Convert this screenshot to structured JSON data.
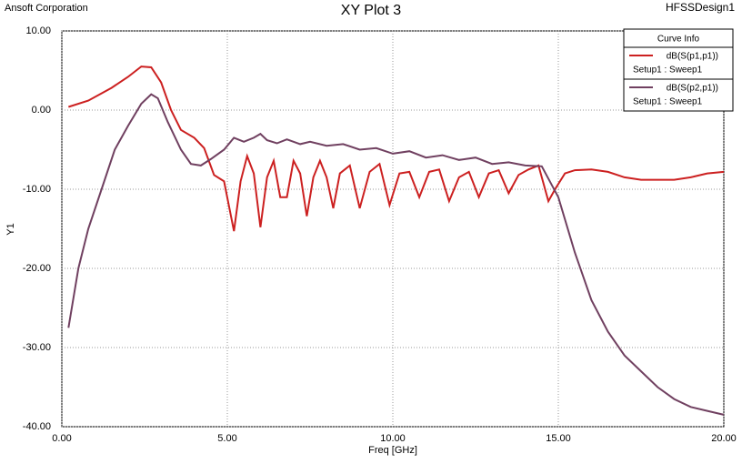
{
  "chart_data": {
    "type": "line",
    "title": "XY Plot 3",
    "company": "Ansoft Corporation",
    "design": "HFSSDesign1",
    "x_label": "Freq [GHz]",
    "y_label": "Y1",
    "legend_title": "Curve Info",
    "legend": "upper right",
    "grid": true,
    "xlim": [
      0,
      20
    ],
    "ylim": [
      -40,
      10
    ],
    "xticks": [
      {
        "value": 0,
        "label": "0.00"
      },
      {
        "value": 5,
        "label": "5.00"
      },
      {
        "value": 10,
        "label": "10.00"
      },
      {
        "value": 15,
        "label": "15.00"
      },
      {
        "value": 20,
        "label": "20.00"
      }
    ],
    "yticks": [
      {
        "value": 10,
        "label": "10.00"
      },
      {
        "value": 0,
        "label": "0.00"
      },
      {
        "value": -10,
        "label": "-10.00"
      },
      {
        "value": -20,
        "label": "-20.00"
      },
      {
        "value": -30,
        "label": "-30.00"
      },
      {
        "value": -40,
        "label": "-40.00"
      }
    ],
    "series": [
      {
        "name": "dB(S(p1,p1))",
        "setup": "Setup1 : Sweep1",
        "color": "#cc2020",
        "x": [
          0.2,
          0.8,
          1.5,
          2.0,
          2.4,
          2.7,
          3.0,
          3.3,
          3.6,
          4.0,
          4.3,
          4.6,
          4.9,
          5.2,
          5.4,
          5.6,
          5.8,
          6.0,
          6.2,
          6.4,
          6.6,
          6.8,
          7.0,
          7.2,
          7.4,
          7.6,
          7.8,
          8.0,
          8.2,
          8.4,
          8.7,
          9.0,
          9.3,
          9.6,
          9.9,
          10.2,
          10.5,
          10.8,
          11.1,
          11.4,
          11.7,
          12.0,
          12.3,
          12.6,
          12.9,
          13.2,
          13.5,
          13.8,
          14.1,
          14.4,
          14.7,
          14.9,
          15.2,
          15.5,
          16.0,
          16.5,
          17.0,
          17.5,
          18.0,
          18.5,
          19.0,
          19.5,
          20.0
        ],
        "values": [
          0.4,
          1.2,
          2.8,
          4.2,
          5.5,
          5.4,
          3.5,
          0,
          -2.5,
          -3.5,
          -4.8,
          -8.2,
          -9.0,
          -15.3,
          -9.0,
          -5.8,
          -8.0,
          -14.8,
          -8.5,
          -6.4,
          -11.0,
          -11.0,
          -6.4,
          -8.0,
          -13.4,
          -8.5,
          -6.4,
          -8.5,
          -12.4,
          -8.0,
          -7.0,
          -12.4,
          -7.8,
          -6.8,
          -12.0,
          -8.0,
          -7.8,
          -11.0,
          -7.8,
          -7.5,
          -11.5,
          -8.5,
          -7.8,
          -11.0,
          -8.0,
          -7.6,
          -10.5,
          -8.2,
          -7.5,
          -7.0,
          -11.5,
          -10.0,
          -8.0,
          -7.6,
          -7.5,
          -7.8,
          -8.5,
          -8.8,
          -8.8,
          -8.8,
          -8.5,
          -8.0,
          -7.8
        ]
      },
      {
        "name": "dB(S(p2,p1))",
        "setup": "Setup1 : Sweep1",
        "color": "#704060",
        "x": [
          0.2,
          0.5,
          0.8,
          1.2,
          1.6,
          2.0,
          2.4,
          2.7,
          2.9,
          3.2,
          3.6,
          3.9,
          4.2,
          4.5,
          4.9,
          5.2,
          5.5,
          5.8,
          6.0,
          6.2,
          6.5,
          6.8,
          7.2,
          7.5,
          8.0,
          8.5,
          9.0,
          9.5,
          10.0,
          10.5,
          11.0,
          11.5,
          12.0,
          12.5,
          13.0,
          13.5,
          14.0,
          14.5,
          15.0,
          15.5,
          16.0,
          16.5,
          17.0,
          17.5,
          18.0,
          18.5,
          19.0,
          19.5,
          20.0
        ],
        "values": [
          -27.5,
          -20,
          -15,
          -10,
          -5,
          -2,
          0.8,
          2.0,
          1.5,
          -1.5,
          -5,
          -6.8,
          -7,
          -6.2,
          -5,
          -3.5,
          -4.0,
          -3.5,
          -3.0,
          -3.8,
          -4.2,
          -3.7,
          -4.3,
          -4.0,
          -4.5,
          -4.3,
          -5.0,
          -4.8,
          -5.5,
          -5.2,
          -6.0,
          -5.7,
          -6.3,
          -6.0,
          -6.8,
          -6.6,
          -7.0,
          -7.1,
          -11,
          -18,
          -24,
          -28,
          -31,
          -33,
          -35,
          -36.5,
          -37.5,
          -38,
          -38.5
        ]
      }
    ]
  }
}
